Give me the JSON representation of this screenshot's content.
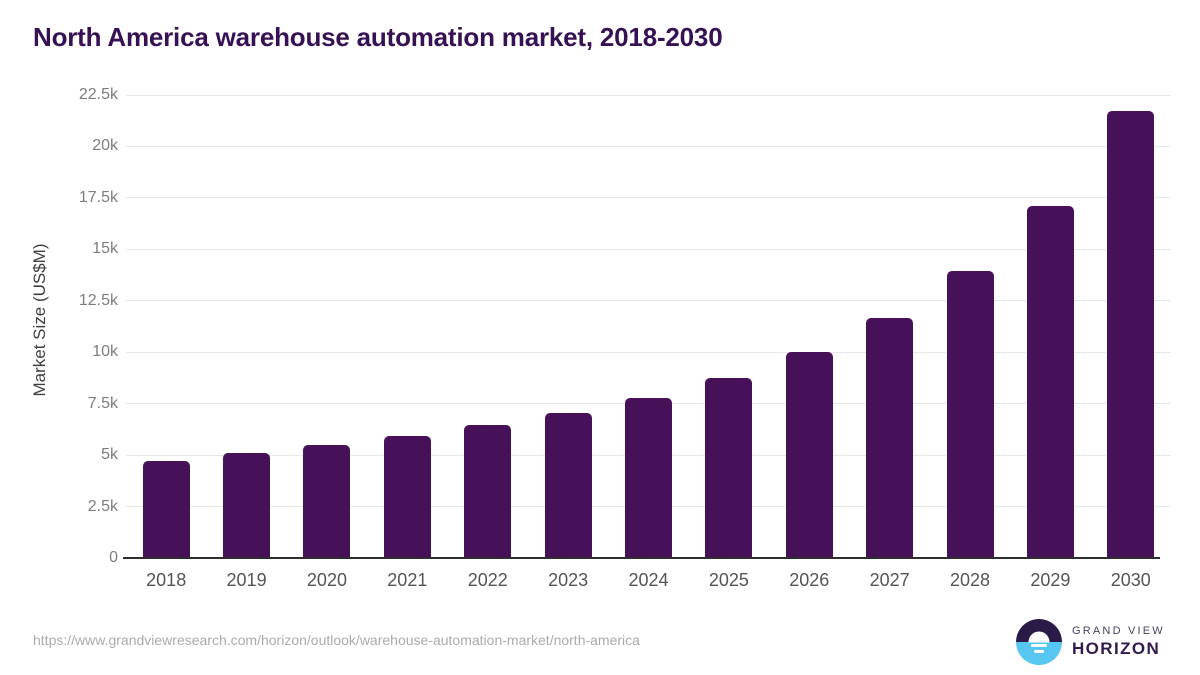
{
  "footer": {
    "source_url": "https://www.grandviewresearch.com/horizon/outlook/warehouse-automation-market/north-america",
    "logo": {
      "line1": "GRAND VIEW",
      "line2": "HORIZON"
    }
  },
  "colors": {
    "bar": "#47115A",
    "title": "#371153",
    "axis_line": "#2D2D2D",
    "gridline": "#E7E7E9",
    "tick_label": "#7D7D7D",
    "x_label": "#555555",
    "y_axis_title": "#3F3F3F",
    "footer_url": "#ABABAB",
    "logo_dark": "#2A1A47",
    "logo_blue": "#57C7F2",
    "logo_text_gray": "#4A3E63",
    "logo_text_dark": "#311A4D"
  },
  "chart_data": {
    "type": "bar",
    "title": "North America warehouse automation market, 2018-2030",
    "categories": [
      "2018",
      "2019",
      "2020",
      "2021",
      "2022",
      "2023",
      "2024",
      "2025",
      "2026",
      "2027",
      "2028",
      "2029",
      "2030"
    ],
    "values": [
      4700,
      5100,
      5500,
      5950,
      6450,
      7050,
      7800,
      8750,
      10000,
      11650,
      13950,
      17100,
      21700
    ],
    "xlabel": "",
    "ylabel": "Market Size (US$M)",
    "ylim": [
      0,
      22500
    ],
    "yticks": [
      0,
      2500,
      5000,
      7500,
      10000,
      12500,
      15000,
      17500,
      20000,
      22500
    ],
    "ytick_labels": [
      "0",
      "2.5k",
      "5k",
      "7.5k",
      "10k",
      "12.5k",
      "15k",
      "17.5k",
      "20k",
      "22.5k"
    ],
    "grid": "horizontal",
    "legend": "none",
    "bar_corner_radius": "rounded-top"
  }
}
